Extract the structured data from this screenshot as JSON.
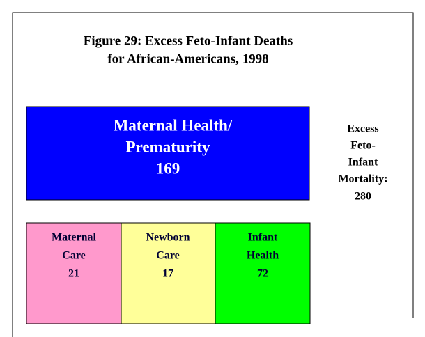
{
  "title": [
    "Figure 29: Excess Feto-Infant Deaths",
    "for African-Americans, 1998"
  ],
  "main_box": {
    "label": [
      "Maternal Health/",
      "Prematurity"
    ],
    "value": 169
  },
  "side_note": {
    "label": [
      "Excess",
      "Feto-",
      "Infant",
      "Mortality:"
    ],
    "value": 280
  },
  "components": [
    {
      "label": [
        "Maternal",
        "Care"
      ],
      "value": 21
    },
    {
      "label": [
        "Newborn",
        "Care"
      ],
      "value": 17
    },
    {
      "label": [
        "Infant",
        "Health"
      ],
      "value": 72
    }
  ]
}
